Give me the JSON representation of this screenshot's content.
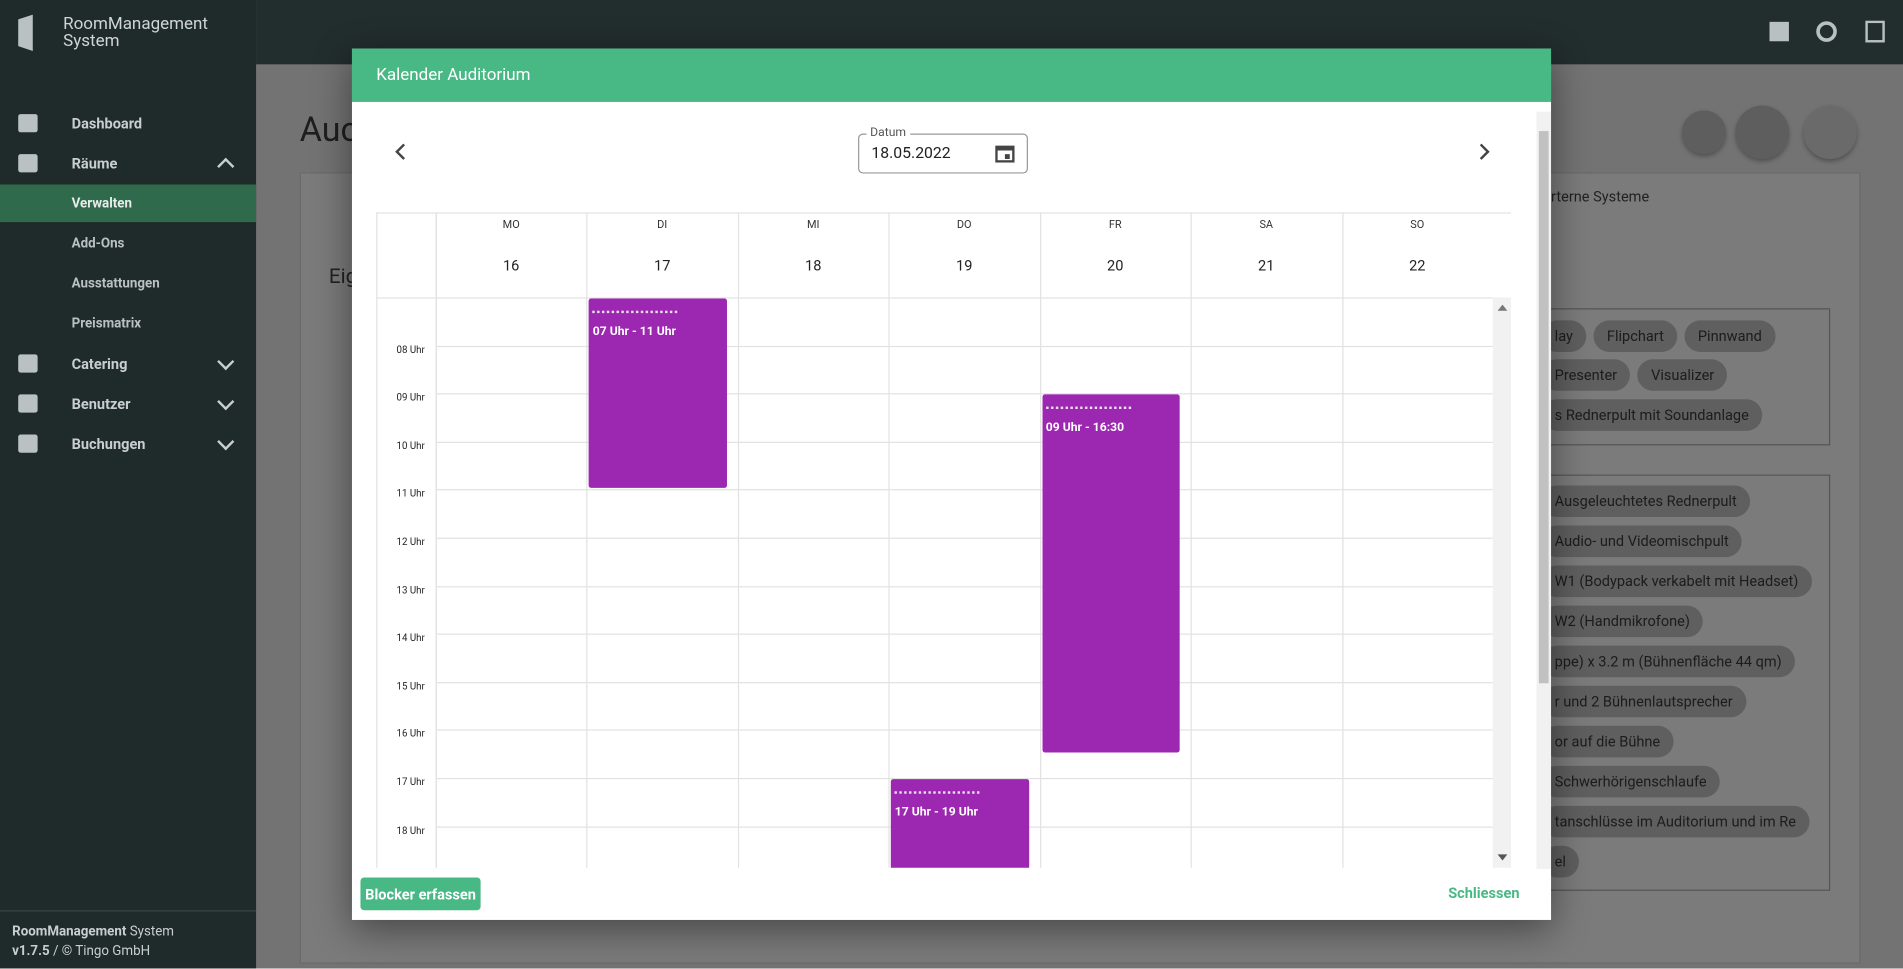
{
  "sidebar": {
    "brand_line1": "RoomManagement",
    "brand_line2": "System",
    "menu": [
      {
        "label": "Dashboard",
        "level": 1
      },
      {
        "label": "Räume",
        "level": 1,
        "expanded": true
      },
      {
        "label": "Verwalten",
        "level": 2,
        "active": true
      },
      {
        "label": "Add-Ons",
        "level": 2
      },
      {
        "label": "Ausstattungen",
        "level": 2
      },
      {
        "label": "Preismatrix",
        "level": 2
      },
      {
        "label": "Catering",
        "level": 1,
        "expanded": false
      },
      {
        "label": "Benutzer",
        "level": 1,
        "expanded": false
      },
      {
        "label": "Buchungen",
        "level": 1,
        "expanded": false
      }
    ],
    "footer_brand": "RoomManagement",
    "footer_brand_suffix": "System",
    "version": "v1.7.5",
    "copyright": "/ © Tingo GmbH"
  },
  "background": {
    "page_title": "Auc",
    "section_title": "Eig",
    "tab": "rterne Systeme",
    "chips_1": [
      [
        "lay",
        "Flipchart",
        "Pinnwand"
      ],
      [
        "Presenter",
        "Visualizer"
      ],
      [
        "s Rednerpult mit Soundanlage"
      ]
    ],
    "chips_2": [
      [
        "Ausgeleuchtetes Rednerpult"
      ],
      [
        "Audio- und Videomischpult"
      ],
      [
        "W1 (Bodypack verkabelt mit Headset)"
      ],
      [
        "W2 (Handmikrofone)"
      ],
      [
        "ppe) x 3.2 m (Bühnenfläche 44 qm)"
      ],
      [
        "r und 2 Bühnenlautsprecher"
      ],
      [
        "or auf die Bühne"
      ],
      [
        "Schwerhörigenschlaufe"
      ],
      [
        "tanschlüsse im Auditorium und im Re"
      ],
      [
        "el"
      ]
    ]
  },
  "modal": {
    "title": "Kalender Auditorium",
    "date_label": "Datum",
    "date": "18.05.2022",
    "days": [
      {
        "weekday": "MO",
        "date": 16
      },
      {
        "weekday": "DI",
        "date": 17
      },
      {
        "weekday": "MI",
        "date": 18
      },
      {
        "weekday": "DO",
        "date": 19
      },
      {
        "weekday": "FR",
        "date": 20
      },
      {
        "weekday": "SA",
        "date": 21
      },
      {
        "weekday": "SO",
        "date": 22
      }
    ],
    "hours": [
      "08 Uhr",
      "09 Uhr",
      "10 Uhr",
      "11 Uhr",
      "12 Uhr",
      "13 Uhr",
      "14 Uhr",
      "15 Uhr",
      "16 Uhr",
      "17 Uhr",
      "18 Uhr"
    ],
    "events": [
      {
        "day": "DI",
        "start": 7,
        "end": 11,
        "label": "07 Uhr - 11 Uhr",
        "color": "#9c27b0"
      },
      {
        "day": "FR",
        "start": 9,
        "end": 16.5,
        "label": "09 Uhr - 16:30",
        "color": "#9c27b0"
      },
      {
        "day": "DO",
        "start": 17,
        "end": 19,
        "label": "17 Uhr - 19 Uhr",
        "color": "#9c27b0"
      }
    ],
    "create_button": "Blocker erfassen",
    "close_button": "Schliessen"
  }
}
